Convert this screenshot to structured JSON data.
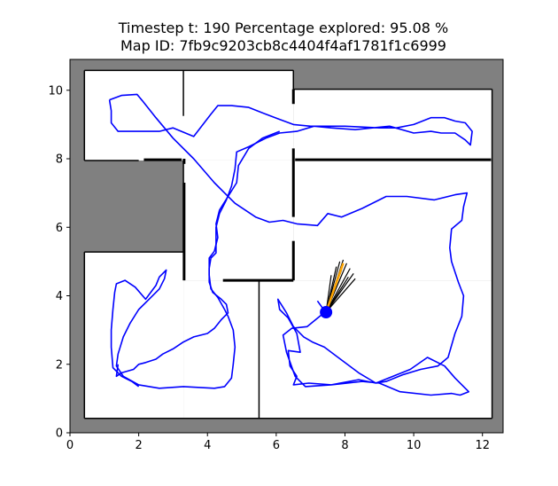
{
  "chart_data": {
    "type": "line",
    "title_line1": "Timestep t: 190   Percentage explored: 95.08 %",
    "title_line2": "Map ID: 7fb9c9203cb8c4404f4af1781f1c6999",
    "xlabel": "",
    "ylabel": "",
    "xlim": [
      0,
      12.6
    ],
    "ylim": [
      0,
      10.9
    ],
    "xticks": [
      0,
      2,
      4,
      6,
      8,
      10,
      12
    ],
    "yticks": [
      0,
      2,
      4,
      6,
      8,
      10
    ],
    "grid": false,
    "colors": {
      "unexplored": "#808080",
      "free": "#ffffff",
      "wall": "#000000",
      "trajectory": "#0000ff",
      "agent": "#0000ff",
      "heading": "#ffa500",
      "rays": "#000000"
    },
    "rooms": [
      {
        "x0": 0.42,
        "y0": 7.95,
        "x1": 6.5,
        "y1": 10.58
      },
      {
        "x0": 6.5,
        "y0": 7.95,
        "x1": 12.28,
        "y1": 10.03
      },
      {
        "x0": 3.3,
        "y0": 4.45,
        "x1": 6.5,
        "y1": 7.95
      },
      {
        "x0": 0.42,
        "y0": 0.42,
        "x1": 3.3,
        "y1": 5.28
      },
      {
        "x0": 3.3,
        "y0": 0.42,
        "x1": 12.28,
        "y1": 4.45
      },
      {
        "x0": 6.5,
        "y0": 4.45,
        "x1": 12.28,
        "y1": 7.95
      }
    ],
    "unexplored_free_pocket": [
      [
        2.0,
        7.95
      ],
      [
        1.98,
        7.7
      ],
      [
        1.98,
        7.3
      ],
      [
        2.08,
        7.0
      ],
      [
        2.25,
        6.7
      ],
      [
        2.45,
        6.45
      ],
      [
        2.62,
        6.3
      ],
      [
        2.8,
        6.22
      ],
      [
        3.0,
        6.22
      ],
      [
        3.15,
        6.3
      ],
      [
        3.3,
        6.45
      ],
      [
        3.3,
        7.95
      ]
    ],
    "walls_thick": [
      [
        [
          3.32,
          8.0
        ],
        [
          3.32,
          7.85
        ]
      ],
      [
        [
          2.15,
          7.97
        ],
        [
          3.25,
          7.97
        ]
      ],
      [
        [
          6.5,
          8.3
        ],
        [
          6.5,
          6.3
        ]
      ],
      [
        [
          6.55,
          7.97
        ],
        [
          12.25,
          7.97
        ]
      ],
      [
        [
          3.32,
          7.3
        ],
        [
          3.32,
          4.45
        ]
      ],
      [
        [
          4.45,
          4.45
        ],
        [
          6.5,
          4.45
        ]
      ],
      [
        [
          6.5,
          5.6
        ],
        [
          6.5,
          4.45
        ]
      ],
      [
        [
          6.5,
          10.03
        ],
        [
          6.5,
          9.6
        ]
      ]
    ],
    "walls_thin": [
      [
        [
          3.3,
          10.58
        ],
        [
          3.3,
          9.25
        ]
      ],
      [
        [
          5.5,
          4.45
        ],
        [
          5.5,
          0.42
        ]
      ]
    ],
    "trajectory": [
      [
        1.15,
        9.72
      ],
      [
        1.5,
        9.85
      ],
      [
        1.95,
        9.88
      ],
      [
        2.1,
        9.7
      ],
      [
        2.5,
        9.2
      ],
      [
        3.0,
        8.6
      ],
      [
        3.6,
        8.0
      ],
      [
        4.2,
        7.3
      ],
      [
        4.8,
        6.7
      ],
      [
        5.4,
        6.3
      ],
      [
        5.8,
        6.15
      ],
      [
        6.2,
        6.2
      ],
      [
        6.6,
        6.1
      ],
      [
        7.2,
        6.05
      ],
      [
        7.5,
        6.4
      ],
      [
        7.9,
        6.3
      ],
      [
        8.5,
        6.55
      ],
      [
        9.2,
        6.9
      ],
      [
        9.8,
        6.9
      ],
      [
        10.6,
        6.8
      ],
      [
        11.2,
        6.95
      ],
      [
        11.55,
        7.0
      ],
      [
        11.45,
        6.6
      ],
      [
        11.4,
        6.2
      ],
      [
        11.1,
        5.95
      ],
      [
        11.05,
        5.4
      ],
      [
        11.1,
        5.0
      ],
      [
        11.3,
        4.4
      ],
      [
        11.45,
        4.0
      ],
      [
        11.4,
        3.4
      ],
      [
        11.2,
        2.9
      ],
      [
        11.0,
        2.2
      ],
      [
        10.7,
        1.95
      ],
      [
        10.2,
        1.85
      ],
      [
        9.7,
        1.7
      ],
      [
        9.2,
        1.5
      ],
      [
        8.9,
        1.45
      ],
      [
        8.4,
        1.75
      ],
      [
        7.8,
        2.2
      ],
      [
        7.4,
        2.5
      ],
      [
        7.05,
        2.65
      ],
      [
        6.8,
        2.8
      ],
      [
        6.5,
        3.1
      ],
      [
        6.3,
        3.5
      ],
      [
        6.05,
        3.9
      ],
      [
        6.1,
        3.6
      ],
      [
        6.35,
        3.35
      ],
      [
        6.6,
        2.9
      ],
      [
        6.7,
        2.35
      ],
      [
        6.35,
        2.4
      ],
      [
        6.4,
        1.95
      ],
      [
        6.6,
        1.65
      ],
      [
        6.5,
        1.4
      ],
      [
        6.95,
        1.45
      ],
      [
        7.6,
        1.4
      ],
      [
        8.5,
        1.5
      ],
      [
        9.0,
        1.45
      ],
      [
        9.6,
        1.2
      ],
      [
        10.5,
        1.1
      ],
      [
        11.1,
        1.15
      ],
      [
        11.35,
        1.1
      ],
      [
        11.6,
        1.2
      ],
      [
        11.2,
        1.6
      ],
      [
        10.9,
        1.95
      ],
      [
        10.4,
        2.2
      ],
      [
        9.9,
        1.85
      ],
      [
        9.4,
        1.65
      ],
      [
        8.9,
        1.45
      ],
      [
        8.4,
        1.55
      ],
      [
        7.6,
        1.4
      ],
      [
        6.85,
        1.35
      ],
      [
        6.55,
        1.65
      ],
      [
        6.3,
        2.35
      ],
      [
        6.2,
        2.85
      ],
      [
        6.45,
        3.05
      ],
      [
        6.9,
        3.1
      ],
      [
        7.45,
        3.55
      ],
      [
        7.45,
        3.5
      ],
      [
        7.2,
        3.85
      ]
    ],
    "trajectory_left": [
      [
        1.15,
        9.72
      ],
      [
        1.2,
        9.4
      ],
      [
        1.2,
        9.05
      ],
      [
        1.4,
        8.8
      ],
      [
        2.0,
        8.8
      ],
      [
        2.6,
        8.8
      ],
      [
        3.0,
        8.9
      ],
      [
        3.6,
        8.65
      ],
      [
        4.1,
        9.3
      ],
      [
        4.3,
        9.55
      ],
      [
        4.7,
        9.55
      ],
      [
        5.2,
        9.5
      ],
      [
        5.7,
        9.3
      ],
      [
        6.1,
        9.15
      ],
      [
        6.5,
        9.0
      ],
      [
        7.0,
        8.95
      ],
      [
        7.5,
        8.95
      ],
      [
        8.0,
        8.95
      ],
      [
        9.0,
        8.9
      ],
      [
        9.5,
        8.9
      ],
      [
        10.0,
        9.0
      ],
      [
        10.5,
        9.2
      ],
      [
        10.9,
        9.2
      ],
      [
        11.2,
        9.1
      ],
      [
        11.5,
        9.05
      ],
      [
        11.7,
        8.8
      ],
      [
        11.65,
        8.4
      ],
      [
        11.5,
        8.55
      ],
      [
        11.2,
        8.75
      ],
      [
        10.8,
        8.75
      ],
      [
        10.5,
        8.8
      ],
      [
        10.0,
        8.75
      ],
      [
        9.3,
        8.95
      ],
      [
        8.8,
        8.9
      ],
      [
        8.3,
        8.85
      ],
      [
        7.6,
        8.9
      ],
      [
        7.1,
        8.95
      ],
      [
        6.6,
        8.8
      ],
      [
        6.1,
        8.75
      ],
      [
        5.7,
        8.6
      ],
      [
        5.2,
        8.35
      ],
      [
        4.85,
        8.2
      ],
      [
        4.8,
        7.7
      ],
      [
        4.7,
        7.2
      ],
      [
        4.55,
        6.8
      ],
      [
        4.35,
        6.4
      ],
      [
        4.25,
        6.0
      ],
      [
        4.25,
        5.6
      ],
      [
        4.25,
        5.25
      ],
      [
        4.1,
        5.1
      ],
      [
        4.05,
        4.8
      ],
      [
        4.05,
        4.4
      ],
      [
        4.15,
        4.1
      ],
      [
        4.4,
        3.9
      ],
      [
        4.55,
        3.75
      ],
      [
        4.6,
        3.5
      ],
      [
        4.4,
        3.3
      ],
      [
        4.2,
        3.05
      ],
      [
        4.0,
        2.9
      ],
      [
        3.6,
        2.8
      ],
      [
        3.3,
        2.65
      ],
      [
        3.0,
        2.45
      ],
      [
        2.7,
        2.3
      ],
      [
        2.5,
        2.15
      ],
      [
        2.2,
        2.05
      ],
      [
        2.0,
        2.0
      ],
      [
        1.85,
        1.85
      ],
      [
        1.5,
        1.75
      ],
      [
        1.35,
        1.65
      ],
      [
        1.4,
        2.0
      ]
    ],
    "trajectory_lower_left": [
      [
        2.0,
        1.35
      ],
      [
        1.8,
        1.5
      ],
      [
        1.5,
        1.65
      ],
      [
        1.25,
        1.9
      ],
      [
        1.2,
        2.5
      ],
      [
        1.2,
        3.0
      ],
      [
        1.25,
        3.6
      ],
      [
        1.3,
        4.1
      ],
      [
        1.35,
        4.35
      ],
      [
        1.6,
        4.45
      ],
      [
        1.9,
        4.25
      ],
      [
        2.2,
        3.9
      ],
      [
        2.5,
        4.3
      ],
      [
        2.6,
        4.55
      ],
      [
        2.8,
        4.75
      ],
      [
        2.75,
        4.5
      ],
      [
        2.6,
        4.2
      ],
      [
        2.3,
        3.9
      ],
      [
        2.0,
        3.6
      ],
      [
        1.75,
        3.2
      ],
      [
        1.55,
        2.8
      ],
      [
        1.4,
        2.3
      ],
      [
        1.35,
        1.95
      ],
      [
        1.55,
        1.65
      ],
      [
        2.0,
        1.4
      ],
      [
        2.6,
        1.3
      ],
      [
        3.3,
        1.35
      ],
      [
        4.2,
        1.3
      ],
      [
        4.5,
        1.35
      ],
      [
        4.7,
        1.6
      ],
      [
        4.75,
        2.0
      ],
      [
        4.8,
        2.5
      ],
      [
        4.75,
        3.0
      ],
      [
        4.6,
        3.4
      ],
      [
        4.5,
        3.6
      ]
    ],
    "trajectory_loop_middle": [
      [
        4.5,
        3.6
      ],
      [
        4.3,
        3.95
      ],
      [
        4.1,
        4.2
      ],
      [
        4.05,
        4.6
      ],
      [
        4.05,
        5.1
      ],
      [
        4.2,
        5.3
      ],
      [
        4.3,
        5.7
      ],
      [
        4.25,
        6.1
      ],
      [
        4.35,
        6.5
      ],
      [
        4.6,
        6.9
      ],
      [
        4.85,
        7.3
      ],
      [
        4.9,
        7.8
      ],
      [
        5.2,
        8.3
      ],
      [
        5.6,
        8.6
      ],
      [
        6.1,
        8.8
      ]
    ],
    "agent": {
      "x": 7.45,
      "y": 3.52
    },
    "heading_end": {
      "x": 7.95,
      "y": 4.95
    },
    "rays": [
      [
        7.6,
        4.6
      ],
      [
        7.75,
        4.85
      ],
      [
        7.85,
        5.0
      ],
      [
        7.95,
        5.05
      ],
      [
        8.05,
        4.95
      ],
      [
        8.15,
        4.8
      ],
      [
        8.25,
        4.65
      ],
      [
        8.3,
        4.5
      ],
      [
        8.1,
        4.55
      ],
      [
        7.9,
        4.75
      ]
    ]
  }
}
